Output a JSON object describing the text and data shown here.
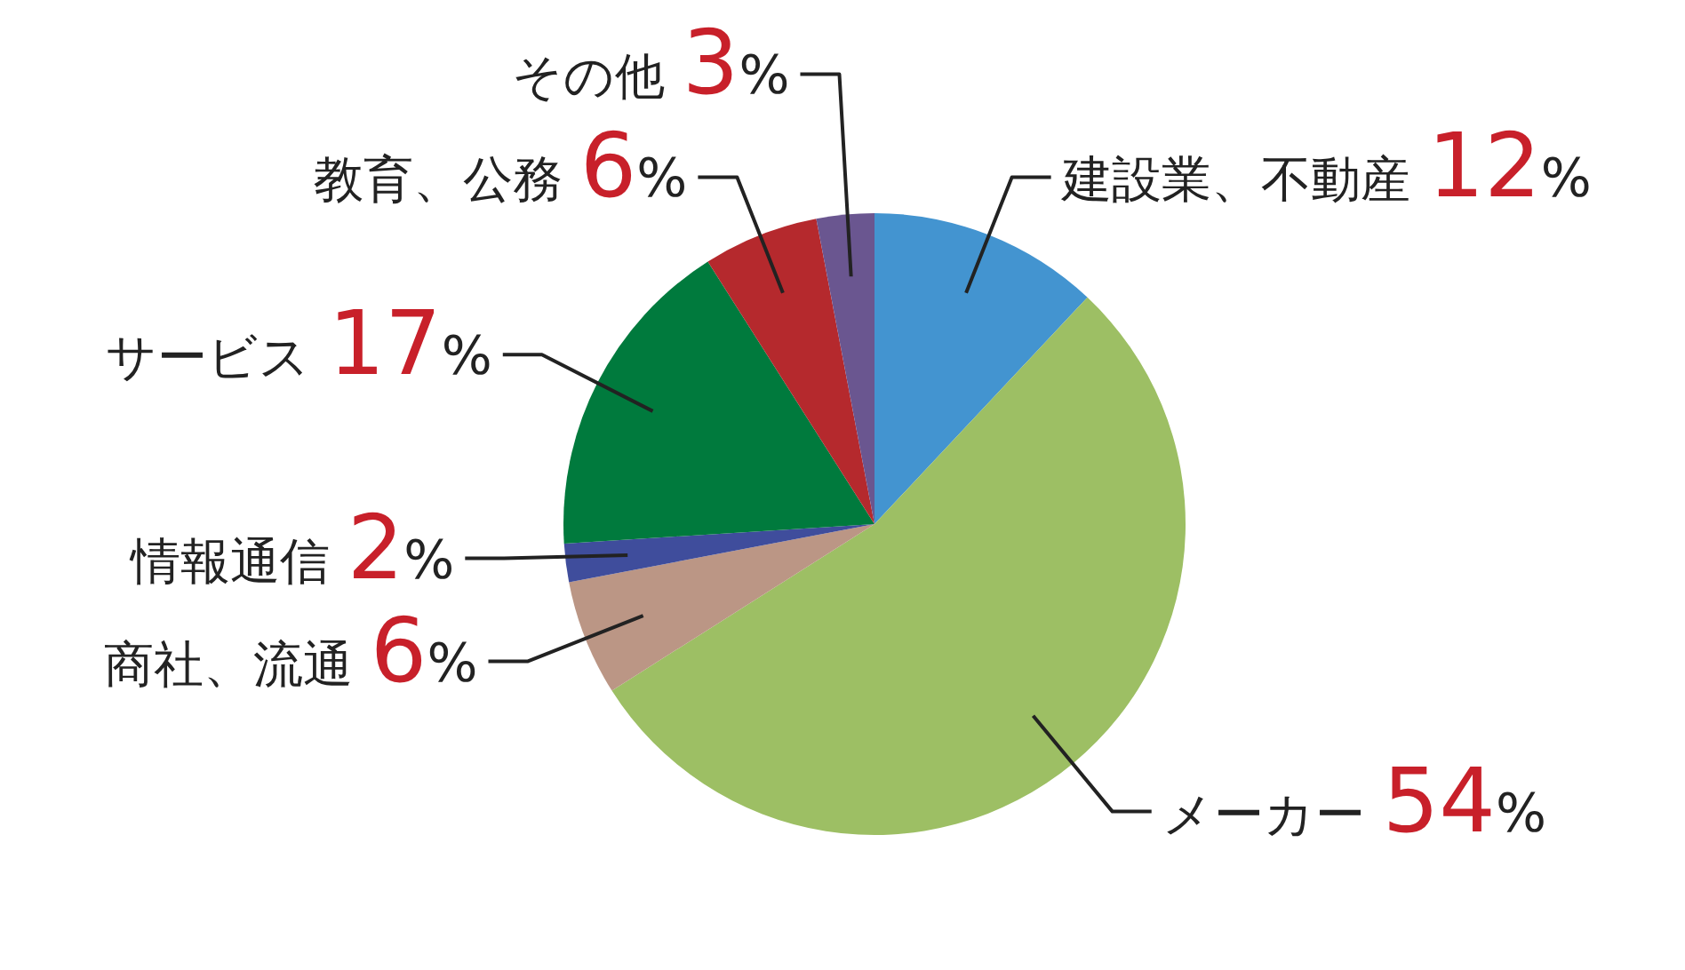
{
  "chart_data": {
    "type": "pie",
    "categories": [
      "建設業、不動産",
      "メーカー",
      "商社、流通",
      "情報通信",
      "サービス",
      "教育、公務",
      "その他"
    ],
    "values": [
      12,
      54,
      6,
      2,
      17,
      6,
      3
    ],
    "value_labels": [
      "12%",
      "54%",
      "6%",
      "2%",
      "17%",
      "6%",
      "3%"
    ],
    "colors": [
      "#4394d0",
      "#9dbf64",
      "#bb9685",
      "#3f4d9c",
      "#007a3d",
      "#b5292d",
      "#6a5690"
    ]
  }
}
